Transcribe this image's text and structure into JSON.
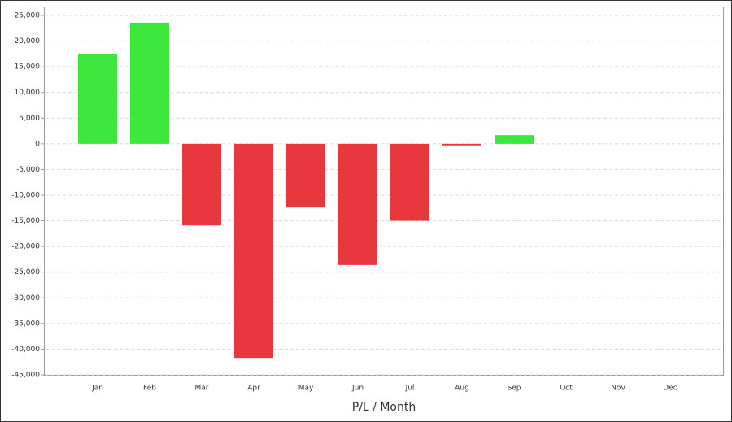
{
  "chart_data": {
    "type": "bar",
    "xlabel": "P/L / Month",
    "categories": [
      "Jan",
      "Feb",
      "Mar",
      "Apr",
      "May",
      "Jun",
      "Jul",
      "Aug",
      "Sep",
      "Oct",
      "Nov",
      "Dec"
    ],
    "values": [
      17400,
      23600,
      -15900,
      -41700,
      -12400,
      -23600,
      -15000,
      -300,
      1700,
      null,
      null,
      null
    ],
    "positive_color": "#3de83d",
    "negative_color": "#e8383d",
    "ylim": [
      -45000,
      25000
    ],
    "yticks": [
      {
        "value": -45000,
        "label": "-45,000"
      },
      {
        "value": -40000,
        "label": "-40,000"
      },
      {
        "value": -35000,
        "label": "-35,000"
      },
      {
        "value": -30000,
        "label": "-30,000"
      },
      {
        "value": -25000,
        "label": "-25,000"
      },
      {
        "value": -20000,
        "label": "-20,000"
      },
      {
        "value": -15000,
        "label": "-15,000"
      },
      {
        "value": -10000,
        "label": "-10,000"
      },
      {
        "value": -5000,
        "label": "-5,000"
      },
      0,
      {
        "value": 5000,
        "label": "5,000"
      },
      {
        "value": 10000,
        "label": "10,000"
      },
      {
        "value": 15000,
        "label": "15,000"
      },
      {
        "value": 20000,
        "label": "20,000"
      },
      {
        "value": 25000,
        "label": "25,000"
      }
    ],
    "grid": true
  }
}
